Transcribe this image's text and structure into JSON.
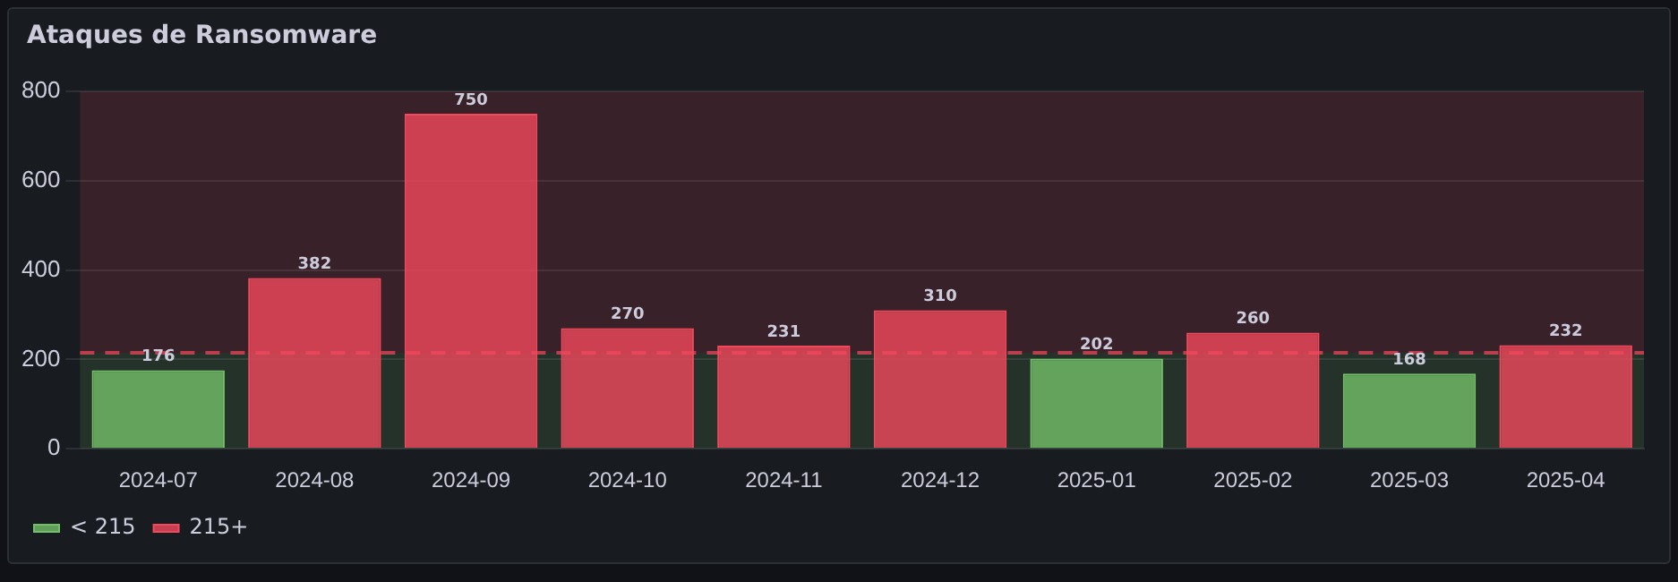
{
  "chart_data": {
    "type": "bar",
    "title": "Ataques de Ransomware",
    "categories": [
      "2024-07",
      "2024-08",
      "2024-09",
      "2024-10",
      "2024-11",
      "2024-12",
      "2025-01",
      "2025-02",
      "2025-03",
      "2025-04"
    ],
    "series": [
      {
        "name": "< 215",
        "color": "#73bf69",
        "values": [
          176,
          null,
          null,
          null,
          null,
          null,
          202,
          null,
          168,
          null
        ]
      },
      {
        "name": "215+",
        "color": "#f2495c",
        "values": [
          null,
          382,
          750,
          270,
          231,
          310,
          null,
          260,
          null,
          232
        ]
      }
    ],
    "ylim": [
      0,
      800
    ],
    "yticks": [
      0,
      200,
      400,
      600,
      800
    ],
    "grid": "y",
    "legend": "bottom left",
    "data_labels": true,
    "bands": [
      {
        "axis": "y",
        "from": 0,
        "to": 215,
        "color": "#73bf69"
      },
      {
        "axis": "y",
        "from": 215,
        "to": 800,
        "color": "#f2495c"
      }
    ],
    "ref_lines": [
      {
        "axis": "y",
        "value": 215,
        "color": "#f2495c",
        "line_style": "dashed"
      }
    ]
  }
}
